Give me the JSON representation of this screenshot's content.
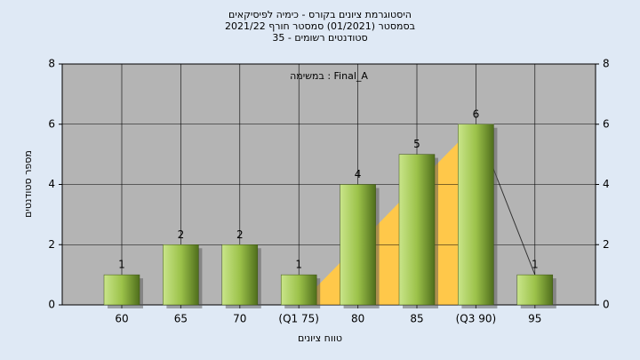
{
  "chart_data": {
    "type": "bar",
    "title": "היסטוגרמת ציונים בקורס - כימיה לפיסיקאים",
    "subtitle": "בסמסטר  (01/2021)  סמסטר חורף 2021/22",
    "subtitle2": "סטודנטים רשומים - 35",
    "annotation": "במשימה : Final_A",
    "x_label": "טווח ציונים",
    "y_label": "מספר סטודנטים",
    "categories": [
      "60",
      "65",
      "70",
      "(Q1 75)",
      "80",
      "85",
      "(Q3 90)",
      "95"
    ],
    "values": [
      1,
      2,
      2,
      1,
      4,
      5,
      6,
      1
    ],
    "color": "#8fbd3a",
    "ylim": [
      0,
      8
    ],
    "yticks": [
      0,
      2,
      4,
      6,
      8
    ],
    "y2lim": [
      0,
      8
    ],
    "y2ticks": [
      0,
      2,
      4,
      6,
      8
    ],
    "grid": true
  }
}
